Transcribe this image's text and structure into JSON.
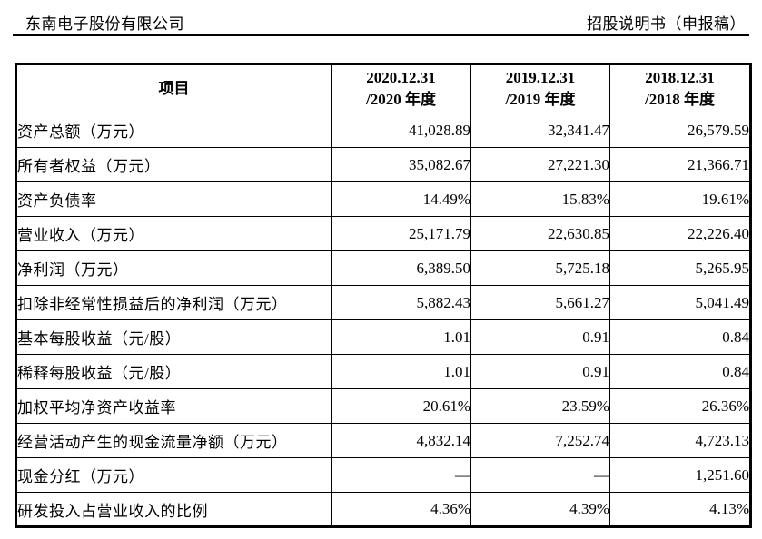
{
  "page_header": {
    "company": "东南电子股份有限公司",
    "doc_title": "招股说明书（申报稿）"
  },
  "table": {
    "item_header": "项目",
    "period_headers": [
      {
        "line1": "2020.12.31",
        "line2": "/2020 年度"
      },
      {
        "line1": "2019.12.31",
        "line2": "/2019 年度"
      },
      {
        "line1": "2018.12.31",
        "line2": "/2018 年度"
      }
    ],
    "rows": [
      {
        "label": "资产总额（万元）",
        "values": [
          "41,028.89",
          "32,341.47",
          "26,579.59"
        ]
      },
      {
        "label": "所有者权益（万元）",
        "values": [
          "35,082.67",
          "27,221.30",
          "21,366.71"
        ]
      },
      {
        "label": "资产负债率",
        "values": [
          "14.49%",
          "15.83%",
          "19.61%"
        ]
      },
      {
        "label": "营业收入（万元）",
        "values": [
          "25,171.79",
          "22,630.85",
          "22,226.40"
        ]
      },
      {
        "label": "净利润（万元）",
        "values": [
          "6,389.50",
          "5,725.18",
          "5,265.95"
        ]
      },
      {
        "label": "扣除非经常性损益后的净利润（万元）",
        "values": [
          "5,882.43",
          "5,661.27",
          "5,041.49"
        ]
      },
      {
        "label": "基本每股收益（元/股）",
        "values": [
          "1.01",
          "0.91",
          "0.84"
        ]
      },
      {
        "label": "稀释每股收益（元/股）",
        "values": [
          "1.01",
          "0.91",
          "0.84"
        ]
      },
      {
        "label": "加权平均净资产收益率",
        "values": [
          "20.61%",
          "23.59%",
          "26.36%"
        ]
      },
      {
        "label": "经营活动产生的现金流量净额（万元）",
        "values": [
          "4,832.14",
          "7,252.74",
          "4,723.13"
        ]
      },
      {
        "label": "现金分红（万元）",
        "values": [
          "—",
          "—",
          "1,251.60"
        ]
      },
      {
        "label": "研发投入占营业收入的比例",
        "values": [
          "4.36%",
          "4.39%",
          "4.13%"
        ]
      }
    ]
  }
}
